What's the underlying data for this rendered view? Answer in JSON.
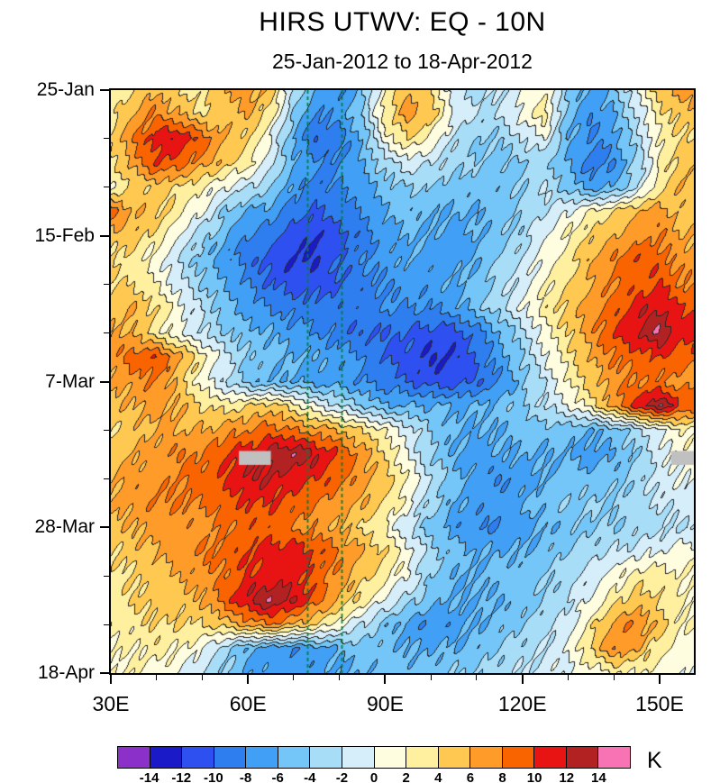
{
  "title": "HIRS UTWV: EQ - 10N",
  "subtitle": "25-Jan-2012 to 18-Apr-2012",
  "colorbar": {
    "unit_label": "K",
    "tick_labels": [
      "-14",
      "-12",
      "-10",
      "-8",
      "-6",
      "-4",
      "-2",
      "0",
      "2",
      "4",
      "6",
      "8",
      "10",
      "12",
      "14"
    ],
    "colors": [
      "#8B30C8",
      "#1A1AC8",
      "#2E50F0",
      "#2E7EF0",
      "#41A0F5",
      "#73C6F7",
      "#A8DDF8",
      "#D6EEF9",
      "#FFFDE0",
      "#FFF0A0",
      "#FFC850",
      "#FF9B28",
      "#F96400",
      "#E81414",
      "#B22222",
      "#F773B4"
    ]
  },
  "chart_data": {
    "type": "heatmap",
    "title": "HIRS UTWV: EQ - 10N",
    "subtitle": "25-Jan-2012 to 18-Apr-2012",
    "units": "K",
    "lon_range": [
      30,
      157.5
    ],
    "time_range_days": [
      0,
      84
    ],
    "grid_lon0": 30,
    "lon_step": 5,
    "day_step": 3.5,
    "levels": {
      "min": -14,
      "max": 14,
      "step": 2
    },
    "contour_line_color": "#282828",
    "missing_color": "#C0C0C0",
    "x_ticks": [
      {
        "lon": 30,
        "label": "30E"
      },
      {
        "lon": 60,
        "label": "60E"
      },
      {
        "lon": 90,
        "label": "90E"
      },
      {
        "lon": 120,
        "label": "120E"
      },
      {
        "lon": 150,
        "label": "150E"
      }
    ],
    "y_ticks": [
      {
        "day": 0,
        "label": "25-Jan"
      },
      {
        "day": 21,
        "label": "15-Feb"
      },
      {
        "day": 42,
        "label": "7-Mar"
      },
      {
        "day": 63,
        "label": "28-Mar"
      },
      {
        "day": 84,
        "label": "18-Apr"
      }
    ],
    "x_minor_lons": [
      40,
      50,
      70,
      80,
      100,
      110,
      130,
      140
    ],
    "y_minor_days": [
      7,
      14,
      28,
      35,
      49,
      56,
      70,
      77
    ],
    "reference_lines": {
      "lons": [
        73,
        80.5
      ],
      "color": "#00803C",
      "dash": [
        4,
        3
      ]
    },
    "missing_patches": [
      {
        "lon_min": 58,
        "lon_max": 65,
        "day_min": 52,
        "day_max": 54
      },
      {
        "lon_min": 152.5,
        "lon_max": 157.5,
        "day_min": 52,
        "day_max": 54
      }
    ],
    "values": [
      [
        2,
        4,
        6,
        4,
        3,
        6,
        7,
        5,
        -2,
        -6,
        -8,
        -5,
        2,
        6,
        4,
        -1,
        -3,
        -2,
        0,
        2,
        -4,
        -7,
        -5,
        0,
        5,
        7
      ],
      [
        3,
        6,
        8,
        6,
        4,
        5,
        6,
        3,
        -4,
        -8,
        -7,
        -4,
        3,
        7,
        5,
        0,
        -2,
        -2,
        1,
        3,
        -5,
        -8,
        -6,
        -2,
        3,
        5
      ],
      [
        4,
        8,
        11,
        12,
        9,
        6,
        4,
        0,
        -6,
        -10,
        -9,
        -6,
        1,
        4,
        2,
        -2,
        -4,
        -4,
        -2,
        0,
        -6,
        -8,
        -7,
        -3,
        2,
        4
      ],
      [
        3,
        7,
        10,
        9,
        7,
        5,
        3,
        -1,
        -6,
        -8,
        -8,
        -6,
        -3,
        -1,
        -2,
        -3,
        -4,
        -5,
        -4,
        -3,
        -6,
        -9,
        -8,
        -4,
        2,
        5
      ],
      [
        2,
        4,
        5,
        4,
        2,
        0,
        -2,
        -4,
        -7,
        -9,
        -8,
        -7,
        -5,
        -4,
        -4,
        -5,
        -5,
        -5,
        -4,
        -2,
        -5,
        -7,
        -6,
        -2,
        3,
        6
      ],
      [
        9,
        6,
        5,
        3,
        0,
        -4,
        -6,
        -7,
        -9,
        -10,
        -9,
        -8,
        -6,
        -5,
        -6,
        -6,
        -6,
        -5,
        -4,
        -2,
        0,
        2,
        4,
        6,
        7,
        5
      ],
      [
        5,
        5,
        3,
        0,
        -3,
        -6,
        -8,
        -9,
        -11,
        -12,
        -11,
        -9,
        -7,
        -6,
        -6,
        -7,
        -6,
        -5,
        -3,
        0,
        2,
        4,
        6,
        7,
        8,
        6
      ],
      [
        4,
        3,
        1,
        -2,
        -5,
        -7,
        -9,
        -11,
        -12,
        -12,
        -10,
        -8,
        -7,
        -6,
        -7,
        -7,
        -6,
        -4,
        -2,
        1,
        3,
        6,
        8,
        10,
        9,
        7
      ],
      [
        4,
        4,
        2,
        -1,
        -4,
        -6,
        -8,
        -10,
        -11,
        -11,
        -10,
        -9,
        -8,
        -7,
        -7,
        -6,
        -5,
        -3,
        -1,
        2,
        4,
        6,
        8,
        9,
        10,
        8
      ],
      [
        5,
        6,
        4,
        1,
        -2,
        -5,
        -7,
        -8,
        -9,
        -9,
        -9,
        -9,
        -8,
        -8,
        -8,
        -7,
        -5,
        -3,
        0,
        3,
        5,
        7,
        9,
        11,
        12,
        10
      ],
      [
        6,
        6,
        3,
        0,
        -2,
        -4,
        -5,
        -6,
        -7,
        -8,
        -9,
        -10,
        -10,
        -10,
        -11,
        -11,
        -9,
        -6,
        -3,
        1,
        4,
        7,
        10,
        12,
        14,
        11
      ],
      [
        7,
        9,
        10,
        7,
        3,
        -1,
        -4,
        -5,
        -6,
        -6,
        -7,
        -8,
        -10,
        -11,
        -12,
        -12,
        -10,
        -7,
        -4,
        0,
        3,
        6,
        8,
        9,
        10,
        9
      ],
      [
        6,
        7,
        8,
        5,
        1,
        -2,
        -5,
        -6,
        -6,
        -7,
        -7,
        -8,
        -9,
        -10,
        -11,
        -11,
        -10,
        -8,
        -5,
        -2,
        2,
        5,
        7,
        8,
        8,
        7
      ],
      [
        5,
        6,
        7,
        6,
        4,
        3,
        4,
        5,
        3,
        0,
        -2,
        -4,
        -6,
        -6,
        -6,
        -6,
        -6,
        -5,
        -4,
        -2,
        0,
        3,
        7,
        11,
        14,
        10
      ],
      [
        4,
        5,
        6,
        6,
        6,
        7,
        8,
        9,
        8,
        7,
        6,
        4,
        2,
        -1,
        -4,
        -6,
        -6,
        -6,
        -5,
        -5,
        -5,
        -6,
        -5,
        -3,
        0,
        2
      ],
      [
        5,
        6,
        7,
        8,
        8,
        10,
        11,
        13,
        14,
        12,
        10,
        7,
        4,
        0,
        -4,
        -6,
        -7,
        -6,
        -6,
        -6,
        -6,
        -7,
        -6,
        -4,
        -1,
        1
      ],
      [
        6,
        7,
        7,
        8,
        9,
        10,
        12,
        12,
        11,
        10,
        9,
        7,
        5,
        2,
        -2,
        -5,
        -7,
        -8,
        -7,
        -6,
        -5,
        -5,
        -5,
        -3,
        -1,
        0
      ],
      [
        6,
        7,
        8,
        8,
        8,
        9,
        10,
        10,
        9,
        8,
        7,
        6,
        4,
        1,
        -3,
        -6,
        -7,
        -7,
        -6,
        -5,
        -4,
        -4,
        -4,
        -3,
        -2,
        -1
      ],
      [
        5,
        6,
        7,
        7,
        7,
        8,
        9,
        9,
        8,
        7,
        6,
        4,
        2,
        -2,
        -5,
        -7,
        -8,
        -8,
        -7,
        -6,
        -5,
        -4,
        -4,
        -3,
        -3,
        -2
      ],
      [
        4,
        5,
        6,
        7,
        8,
        9,
        10,
        11,
        11,
        10,
        8,
        6,
        4,
        1,
        -3,
        -5,
        -6,
        -6,
        -6,
        -5,
        -4,
        -3,
        -2,
        -1,
        0,
        1
      ],
      [
        3,
        4,
        5,
        6,
        7,
        8,
        10,
        11,
        11,
        9,
        7,
        5,
        3,
        0,
        -4,
        -6,
        -6,
        -5,
        -5,
        -4,
        -3,
        -1,
        1,
        3,
        3,
        2
      ],
      [
        3,
        4,
        5,
        5,
        6,
        9,
        12,
        14,
        12,
        9,
        6,
        3,
        0,
        -3,
        -5,
        -6,
        -6,
        -6,
        -5,
        -4,
        -2,
        0,
        3,
        5,
        4,
        2
      ],
      [
        2,
        3,
        4,
        4,
        4,
        5,
        7,
        8,
        6,
        4,
        1,
        -2,
        -5,
        -7,
        -8,
        -7,
        -6,
        -5,
        -4,
        -3,
        -1,
        3,
        7,
        8,
        5,
        2
      ],
      [
        2,
        2,
        3,
        2,
        0,
        -3,
        -6,
        -7,
        -8,
        -7,
        -6,
        -5,
        -5,
        -6,
        -6,
        -6,
        -5,
        -4,
        -3,
        -2,
        0,
        4,
        8,
        6,
        3,
        1
      ],
      [
        2,
        2,
        1,
        0,
        -2,
        -4,
        -6,
        -7,
        -7,
        -7,
        -6,
        -6,
        -5,
        -5,
        -5,
        -4,
        -4,
        -3,
        -2,
        -1,
        0,
        1,
        2,
        2,
        1,
        0
      ]
    ]
  }
}
